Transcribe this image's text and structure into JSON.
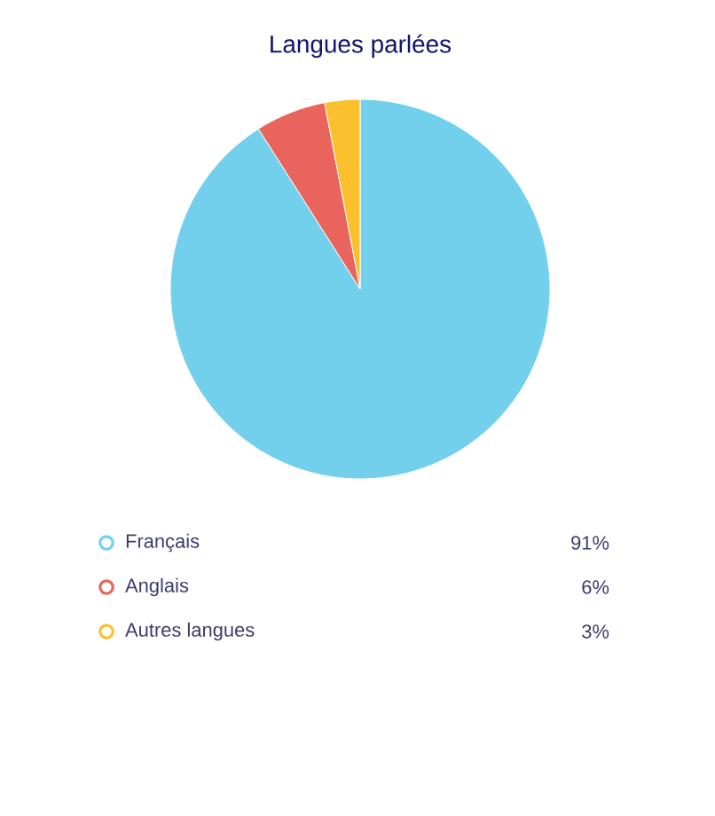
{
  "chart_data": {
    "type": "pie",
    "title": "Langues parlées",
    "categories": [
      "Français",
      "Anglais",
      "Autres langues"
    ],
    "values": [
      91,
      6,
      3
    ],
    "value_labels": [
      "91%",
      "6%",
      "3%"
    ],
    "colors": [
      "#72d0ec",
      "#e8645c",
      "#fbc02d"
    ],
    "legend": "bottom"
  }
}
